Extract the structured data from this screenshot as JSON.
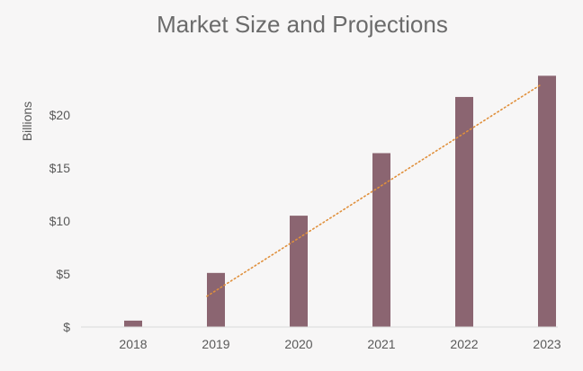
{
  "chart_data": {
    "type": "bar",
    "title": "Market Size and Projections",
    "xlabel": "",
    "ylabel": "Billions",
    "categories": [
      "2018",
      "2019",
      "2020",
      "2021",
      "2022",
      "2023"
    ],
    "values": [
      0.6,
      5.1,
      10.5,
      16.4,
      21.7,
      23.7
    ],
    "trendline": {
      "type": "linear",
      "style": "dotted",
      "from_category": "2019",
      "to_category": "2023",
      "start_value": 2.9,
      "end_value": 22.8
    },
    "ylim": [
      0,
      25
    ],
    "yticks": [
      0,
      5,
      10,
      15,
      20
    ],
    "ytick_labels": [
      "$",
      "$5",
      "$10",
      "$15",
      "$20"
    ],
    "grid": false,
    "legend": "none",
    "colors": {
      "bar": "#8b6571",
      "trendline": "#e0903c",
      "axis": "#d9d9d9",
      "background": "#f7f6f6"
    }
  }
}
